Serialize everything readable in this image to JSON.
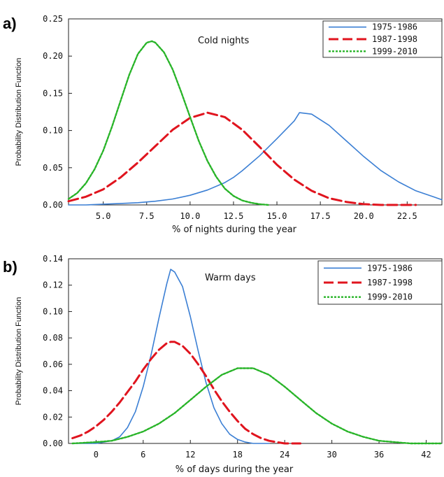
{
  "chart_data": [
    {
      "panel": "a)",
      "type": "line",
      "title": "Cold nights",
      "xlabel": "% of nights during the year",
      "ylabel": "Probability Distribution Function",
      "xlim": [
        3.0,
        24.5
      ],
      "ylim": [
        0.0,
        0.25
      ],
      "xticks": [
        "5.0",
        "7.5",
        "10.0",
        "12.5",
        "15.0",
        "17.5",
        "20.0",
        "22.5"
      ],
      "yticks": [
        "0.00",
        "0.05",
        "0.10",
        "0.15",
        "0.20",
        "0.25"
      ],
      "legend_position": "top-right",
      "series": [
        {
          "name": "1975-1986",
          "color": "#3b7fd4",
          "dash": "solid",
          "x": [
            3,
            4,
            5,
            6,
            7,
            8,
            9,
            10,
            11,
            12,
            12.5,
            13,
            14,
            15,
            16,
            16.3,
            17,
            18,
            19,
            20,
            21,
            22,
            23,
            24,
            24.5
          ],
          "y": [
            0.0,
            0.0,
            0.001,
            0.002,
            0.003,
            0.005,
            0.008,
            0.013,
            0.02,
            0.03,
            0.037,
            0.046,
            0.066,
            0.089,
            0.113,
            0.124,
            0.122,
            0.107,
            0.086,
            0.065,
            0.046,
            0.031,
            0.019,
            0.011,
            0.007
          ]
        },
        {
          "name": "1987-1998",
          "color": "#e0141e",
          "dash": "dashed",
          "x": [
            3,
            4,
            5,
            6,
            7,
            8,
            9,
            10,
            11,
            12,
            13,
            14,
            15,
            16,
            17,
            18,
            19,
            20,
            21,
            22,
            23
          ],
          "y": [
            0.005,
            0.011,
            0.021,
            0.037,
            0.057,
            0.079,
            0.101,
            0.117,
            0.124,
            0.118,
            0.101,
            0.078,
            0.054,
            0.034,
            0.019,
            0.009,
            0.004,
            0.001,
            0.0,
            0.0,
            0.0
          ]
        },
        {
          "name": "1999-2010",
          "color": "#28b428",
          "dash": "dotted",
          "x": [
            3,
            3.5,
            4,
            4.5,
            5,
            5.5,
            6,
            6.5,
            7,
            7.5,
            7.8,
            8,
            8.5,
            9,
            9.5,
            10,
            10.5,
            11,
            11.5,
            12,
            12.5,
            13,
            13.5,
            14,
            14.5
          ],
          "y": [
            0.008,
            0.016,
            0.029,
            0.048,
            0.073,
            0.105,
            0.14,
            0.175,
            0.203,
            0.218,
            0.22,
            0.218,
            0.205,
            0.182,
            0.151,
            0.118,
            0.086,
            0.059,
            0.038,
            0.022,
            0.012,
            0.006,
            0.003,
            0.001,
            0.0
          ]
        }
      ]
    },
    {
      "panel": "b)",
      "type": "line",
      "title": "Warm days",
      "xlabel": "% of days during the year",
      "ylabel": "Probability Distribution Function",
      "xlim": [
        -3.5,
        44.0
      ],
      "ylim": [
        0.0,
        0.14
      ],
      "xticks": [
        "0",
        "6",
        "12",
        "18",
        "24",
        "30",
        "36",
        "42"
      ],
      "yticks": [
        "0.00",
        "0.02",
        "0.04",
        "0.06",
        "0.08",
        "0.10",
        "0.12",
        "0.14"
      ],
      "legend_position": "top-right",
      "series": [
        {
          "name": "1975-1986",
          "color": "#3b7fd4",
          "dash": "solid",
          "x": [
            -3,
            -1,
            0,
            1,
            2,
            3,
            4,
            5,
            6,
            7,
            8,
            9,
            9.5,
            10,
            11,
            12,
            13,
            14,
            15,
            16,
            17,
            18,
            19,
            20,
            22
          ],
          "y": [
            0.0,
            0.0,
            0.0,
            0.001,
            0.002,
            0.005,
            0.012,
            0.024,
            0.043,
            0.067,
            0.095,
            0.121,
            0.132,
            0.13,
            0.119,
            0.096,
            0.07,
            0.046,
            0.027,
            0.015,
            0.007,
            0.003,
            0.001,
            0.0,
            0.0
          ]
        },
        {
          "name": "1987-1998",
          "color": "#e0141e",
          "dash": "dashed",
          "x": [
            -3,
            -2,
            -1,
            0,
            1,
            2,
            3,
            4,
            5,
            6,
            7,
            8,
            9,
            9.5,
            10,
            11,
            12,
            13,
            14,
            15,
            16,
            17,
            18,
            19,
            20,
            21,
            22,
            23,
            24,
            26
          ],
          "y": [
            0.004,
            0.006,
            0.009,
            0.013,
            0.018,
            0.024,
            0.031,
            0.039,
            0.047,
            0.056,
            0.064,
            0.071,
            0.076,
            0.077,
            0.077,
            0.074,
            0.068,
            0.06,
            0.051,
            0.041,
            0.032,
            0.024,
            0.017,
            0.011,
            0.007,
            0.004,
            0.002,
            0.001,
            0.0,
            0.0
          ]
        },
        {
          "name": "1999-2010",
          "color": "#28b428",
          "dash": "dotted",
          "x": [
            -3,
            0,
            2,
            4,
            6,
            8,
            10,
            12,
            14,
            16,
            18,
            20,
            22,
            24,
            26,
            28,
            30,
            32,
            34,
            36,
            38,
            40,
            42,
            44
          ],
          "y": [
            0.0,
            0.001,
            0.002,
            0.005,
            0.009,
            0.015,
            0.023,
            0.033,
            0.043,
            0.052,
            0.057,
            0.057,
            0.052,
            0.043,
            0.033,
            0.023,
            0.015,
            0.009,
            0.005,
            0.002,
            0.001,
            0.0,
            0.0,
            0.0
          ]
        }
      ]
    }
  ]
}
